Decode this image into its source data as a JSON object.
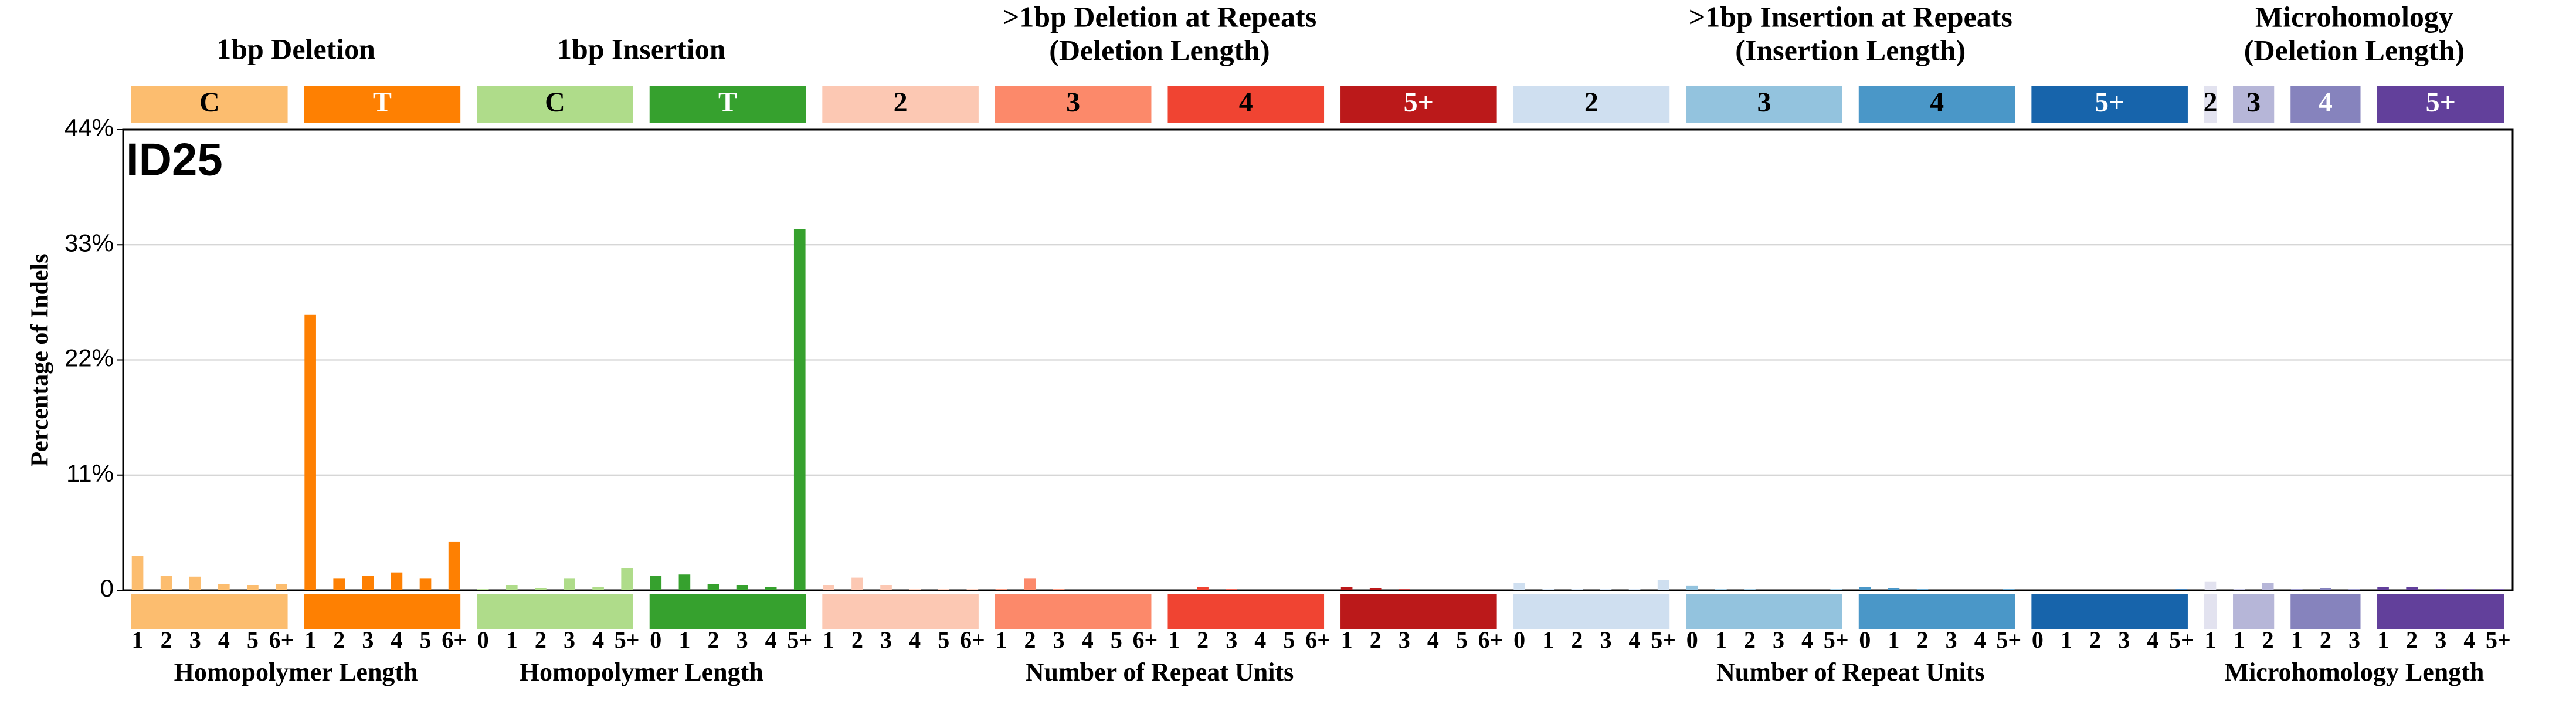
{
  "chart_data": {
    "type": "bar",
    "title": "ID25",
    "ylabel": "Percentage of Indels",
    "ylim": [
      0,
      44
    ],
    "yticks": [
      0,
      {
        "value": 11,
        "label": "11%"
      },
      {
        "value": 22,
        "label": "22%"
      },
      {
        "value": 33,
        "label": "33%"
      },
      {
        "value": 44,
        "label": "44%"
      }
    ],
    "grid": true,
    "groups": [
      {
        "title": [
          "1bp Deletion"
        ],
        "xlabel": "Homopolymer Length",
        "series": [
          {
            "name": "C",
            "color": "#FCBD6F",
            "text_color": "#000000",
            "categories": [
              "1",
              "2",
              "3",
              "4",
              "5",
              "6+"
            ],
            "values": [
              3.3,
              1.4,
              1.3,
              0.6,
              0.5,
              0.6
            ]
          },
          {
            "name": "T",
            "color": "#FE8002",
            "text_color": "#ffffff",
            "categories": [
              "1",
              "2",
              "3",
              "4",
              "5",
              "6+"
            ],
            "values": [
              26.3,
              1.1,
              1.4,
              1.7,
              1.1,
              4.6
            ]
          }
        ]
      },
      {
        "title": [
          "1bp Insertion"
        ],
        "xlabel": "Homopolymer Length",
        "series": [
          {
            "name": "C",
            "color": "#AFDC8A",
            "text_color": "#000000",
            "categories": [
              "0",
              "1",
              "2",
              "3",
              "4",
              "5+"
            ],
            "values": [
              0.1,
              0.5,
              0.2,
              1.1,
              0.3,
              2.1
            ]
          },
          {
            "name": "T",
            "color": "#36A12E",
            "text_color": "#ffffff",
            "categories": [
              "0",
              "1",
              "2",
              "3",
              "4",
              "5+"
            ],
            "values": [
              1.4,
              1.5,
              0.6,
              0.5,
              0.3,
              34.5
            ]
          }
        ]
      },
      {
        "title": [
          ">1bp Deletion at Repeats",
          "(Deletion Length)"
        ],
        "xlabel": "Number of Repeat Units",
        "series": [
          {
            "name": "2",
            "color": "#FCC8B3",
            "text_color": "#000000",
            "categories": [
              "1",
              "2",
              "3",
              "4",
              "5",
              "6+"
            ],
            "values": [
              0.5,
              1.2,
              0.5,
              0.1,
              0.1,
              0.1
            ]
          },
          {
            "name": "3",
            "color": "#FC896A",
            "text_color": "#000000",
            "categories": [
              "1",
              "2",
              "3",
              "4",
              "5",
              "6+"
            ],
            "values": [
              0.1,
              1.1,
              0.1,
              0,
              0,
              0
            ]
          },
          {
            "name": "4",
            "color": "#F04432",
            "text_color": "#000000",
            "categories": [
              "1",
              "2",
              "3",
              "4",
              "5",
              "6+"
            ],
            "values": [
              0,
              0.3,
              0.1,
              0,
              0,
              0
            ]
          },
          {
            "name": "5+",
            "color": "#BB191A",
            "text_color": "#ffffff",
            "categories": [
              "1",
              "2",
              "3",
              "4",
              "5",
              "6+"
            ],
            "values": [
              0.3,
              0.2,
              0.1,
              0,
              0,
              0
            ]
          }
        ]
      },
      {
        "title": [
          ">1bp Insertion at Repeats",
          "(Insertion Length)"
        ],
        "xlabel": "Number of Repeat Units",
        "series": [
          {
            "name": "2",
            "color": "#CFDFF0",
            "text_color": "#000000",
            "categories": [
              "0",
              "1",
              "2",
              "3",
              "4",
              "5+"
            ],
            "values": [
              0.7,
              0.1,
              0.1,
              0.1,
              0.1,
              1.0
            ]
          },
          {
            "name": "3",
            "color": "#93C3DE",
            "text_color": "#000000",
            "categories": [
              "0",
              "1",
              "2",
              "3",
              "4",
              "5+"
            ],
            "values": [
              0.4,
              0.1,
              0.1,
              0,
              0,
              0.1
            ]
          },
          {
            "name": "4",
            "color": "#4A97C8",
            "text_color": "#000000",
            "categories": [
              "0",
              "1",
              "2",
              "3",
              "4",
              "5+"
            ],
            "values": [
              0.3,
              0.2,
              0.1,
              0,
              0,
              0.1
            ]
          },
          {
            "name": "5+",
            "color": "#1764AB",
            "text_color": "#ffffff",
            "categories": [
              "0",
              "1",
              "2",
              "3",
              "4",
              "5+"
            ],
            "values": [
              0,
              0,
              0,
              0,
              0,
              0.1
            ]
          }
        ]
      },
      {
        "title": [
          "Microhomology",
          "(Deletion Length)"
        ],
        "xlabel": "Microhomology Length",
        "series": [
          {
            "name": "2",
            "color": "#E2E2EF",
            "text_color": "#000000",
            "categories": [
              "1"
            ],
            "values": [
              0.8
            ]
          },
          {
            "name": "3",
            "color": "#B6B6D8",
            "text_color": "#000000",
            "categories": [
              "1",
              "2"
            ],
            "values": [
              0.1,
              0.7
            ]
          },
          {
            "name": "4",
            "color": "#8683BD",
            "text_color": "#ffffff",
            "categories": [
              "1",
              "2",
              "3"
            ],
            "values": [
              0.1,
              0.2,
              0.1
            ]
          },
          {
            "name": "5+",
            "color": "#62409B",
            "text_color": "#ffffff",
            "categories": [
              "1",
              "2",
              "3",
              "4",
              "5+"
            ],
            "values": [
              0.3,
              0.3,
              0.1,
              0.1,
              0.1
            ]
          }
        ]
      }
    ]
  }
}
